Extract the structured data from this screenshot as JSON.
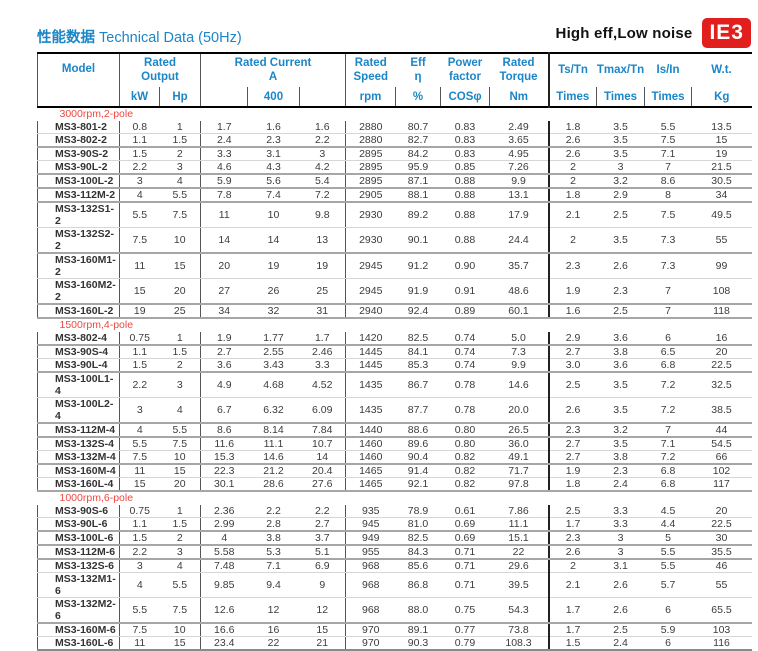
{
  "page": {
    "title_cn": "性能数据",
    "title_en": " Technical Data (50Hz)",
    "tagline": "High eff,Low noise",
    "badge_label": "IE3"
  },
  "colors": {
    "accent_blue": "#1b86c8",
    "section_red": "#ee4742",
    "badge_red": "#e11f1d"
  },
  "table": {
    "header": {
      "model": "Model",
      "rated_output": "Rated\nOutput",
      "rated_current": "Rated Current\nA",
      "rated_speed": "Rated\nSpeed",
      "eff": "Eff\nη",
      "power_factor": "Power\nfactor",
      "rated_torque": "Rated\nTorque",
      "ts_tn": "Ts/Tn",
      "tmax_tn": "Tmax/Tn",
      "is_in": "Is/In",
      "wt": "W.t.",
      "units": {
        "kw": "kW",
        "hp": "Hp",
        "i1": "",
        "i2": "400",
        "i3": "",
        "rpm": "rpm",
        "eff": "%",
        "cos": "COSφ",
        "nm": "Nm",
        "times": "Times",
        "kg": "Kg"
      }
    },
    "sections": [
      {
        "label": "3000rpm,2-pole",
        "rows": [
          {
            "model": "MS3-801-2",
            "values": [
              "0.8",
              "1",
              "1.7",
              "1.6",
              "1.6",
              "2880",
              "80.7",
              "0.83",
              "2.49",
              "1.8",
              "3.5",
              "5.5",
              "13.5"
            ],
            "heavy": false
          },
          {
            "model": "MS3-802-2",
            "values": [
              "1.1",
              "1.5",
              "2.4",
              "2.3",
              "2.2",
              "2880",
              "82.7",
              "0.83",
              "3.65",
              "2.6",
              "3.5",
              "7.5",
              "15"
            ],
            "heavy": true
          },
          {
            "model": "MS3-90S-2",
            "values": [
              "1.5",
              "2",
              "3.3",
              "3.1",
              "3",
              "2895",
              "84.2",
              "0.83",
              "4.95",
              "2.6",
              "3.5",
              "7.1",
              "19"
            ],
            "heavy": false
          },
          {
            "model": "MS3-90L-2",
            "values": [
              "2.2",
              "3",
              "4.6",
              "4.3",
              "4.2",
              "2895",
              "95.9",
              "0.85",
              "7.26",
              "2",
              "3",
              "7",
              "21.5"
            ],
            "heavy": true
          },
          {
            "model": "MS3-100L-2",
            "values": [
              "3",
              "4",
              "5.9",
              "5.6",
              "5.4",
              "2895",
              "87.1",
              "0.88",
              "9.9",
              "2",
              "3.2",
              "8.6",
              "30.5"
            ],
            "heavy": true
          },
          {
            "model": "MS3-112M-2",
            "values": [
              "4",
              "5.5",
              "7.8",
              "7.4",
              "7.2",
              "2905",
              "88.1",
              "0.88",
              "13.1",
              "1.8",
              "2.9",
              "8",
              "34"
            ],
            "heavy": true
          },
          {
            "model": "MS3-132S1-2",
            "values": [
              "5.5",
              "7.5",
              "11",
              "10",
              "9.8",
              "2930",
              "89.2",
              "0.88",
              "17.9",
              "2.1",
              "2.5",
              "7.5",
              "49.5"
            ],
            "heavy": false
          },
          {
            "model": "MS3-132S2-2",
            "values": [
              "7.5",
              "10",
              "14",
              "14",
              "13",
              "2930",
              "90.1",
              "0.88",
              "24.4",
              "2",
              "3.5",
              "7.3",
              "55"
            ],
            "heavy": true
          },
          {
            "model": "MS3-160M1-2",
            "values": [
              "11",
              "15",
              "20",
              "19",
              "19",
              "2945",
              "91.2",
              "0.90",
              "35.7",
              "2.3",
              "2.6",
              "7.3",
              "99"
            ],
            "heavy": false
          },
          {
            "model": "MS3-160M2-2",
            "values": [
              "15",
              "20",
              "27",
              "26",
              "25",
              "2945",
              "91.9",
              "0.91",
              "48.6",
              "1.9",
              "2.3",
              "7",
              "108"
            ],
            "heavy": true
          },
          {
            "model": "MS3-160L-2",
            "values": [
              "19",
              "25",
              "34",
              "32",
              "31",
              "2940",
              "92.4",
              "0.89",
              "60.1",
              "1.6",
              "2.5",
              "7",
              "118"
            ],
            "heavy": true
          }
        ]
      },
      {
        "label": "1500rpm,4-pole",
        "rows": [
          {
            "model": "MS3-802-4",
            "values": [
              "0.75",
              "1",
              "1.9",
              "1.77",
              "1.7",
              "1420",
              "82.5",
              "0.74",
              "5.0",
              "2.9",
              "3.6",
              "6",
              "16"
            ],
            "heavy": true
          },
          {
            "model": "MS3-90S-4",
            "values": [
              "1.1",
              "1.5",
              "2.7",
              "2.55",
              "2.46",
              "1445",
              "84.1",
              "0.74",
              "7.3",
              "2.7",
              "3.8",
              "6.5",
              "20"
            ],
            "heavy": false
          },
          {
            "model": "MS3-90L-4",
            "values": [
              "1.5",
              "2",
              "3.6",
              "3.43",
              "3.3",
              "1445",
              "85.3",
              "0.74",
              "9.9",
              "3.0",
              "3.6",
              "6.8",
              "22.5"
            ],
            "heavy": true
          },
          {
            "model": "MS3-100L1-4",
            "values": [
              "2.2",
              "3",
              "4.9",
              "4.68",
              "4.52",
              "1435",
              "86.7",
              "0.78",
              "14.6",
              "2.5",
              "3.5",
              "7.2",
              "32.5"
            ],
            "heavy": false
          },
          {
            "model": "MS3-100L2-4",
            "values": [
              "3",
              "4",
              "6.7",
              "6.32",
              "6.09",
              "1435",
              "87.7",
              "0.78",
              "20.0",
              "2.6",
              "3.5",
              "7.2",
              "38.5"
            ],
            "heavy": true
          },
          {
            "model": "MS3-112M-4",
            "values": [
              "4",
              "5.5",
              "8.6",
              "8.14",
              "7.84",
              "1440",
              "88.6",
              "0.80",
              "26.5",
              "2.3",
              "3.2",
              "7",
              "44"
            ],
            "heavy": true
          },
          {
            "model": "MS3-132S-4",
            "values": [
              "5.5",
              "7.5",
              "11.6",
              "11.1",
              "10.7",
              "1460",
              "89.6",
              "0.80",
              "36.0",
              "2.7",
              "3.5",
              "7.1",
              "54.5"
            ],
            "heavy": false
          },
          {
            "model": "MS3-132M-4",
            "values": [
              "7.5",
              "10",
              "15.3",
              "14.6",
              "14",
              "1460",
              "90.4",
              "0.82",
              "49.1",
              "2.7",
              "3.8",
              "7.2",
              "66"
            ],
            "heavy": true
          },
          {
            "model": "MS3-160M-4",
            "values": [
              "11",
              "15",
              "22.3",
              "21.2",
              "20.4",
              "1465",
              "91.4",
              "0.82",
              "71.7",
              "1.9",
              "2.3",
              "6.8",
              "102"
            ],
            "heavy": false
          },
          {
            "model": "MS3-160L-4",
            "values": [
              "15",
              "20",
              "30.1",
              "28.6",
              "27.6",
              "1465",
              "92.1",
              "0.82",
              "97.8",
              "1.8",
              "2.4",
              "6.8",
              "117"
            ],
            "heavy": true
          }
        ]
      },
      {
        "label": "1000rpm,6-pole",
        "rows": [
          {
            "model": "MS3-90S-6",
            "values": [
              "0.75",
              "1",
              "2.36",
              "2.2",
              "2.2",
              "935",
              "78.9",
              "0.61",
              "7.86",
              "2.5",
              "3.3",
              "4.5",
              "20"
            ],
            "heavy": false
          },
          {
            "model": "MS3-90L-6",
            "values": [
              "1.1",
              "1.5",
              "2.99",
              "2.8",
              "2.7",
              "945",
              "81.0",
              "0.69",
              "11.1",
              "1.7",
              "3.3",
              "4.4",
              "22.5"
            ],
            "heavy": true
          },
          {
            "model": "MS3-100L-6",
            "values": [
              "1.5",
              "2",
              "4",
              "3.8",
              "3.7",
              "949",
              "82.5",
              "0.69",
              "15.1",
              "2.3",
              "3",
              "5",
              "30"
            ],
            "heavy": true
          },
          {
            "model": "MS3-112M-6",
            "values": [
              "2.2",
              "3",
              "5.58",
              "5.3",
              "5.1",
              "955",
              "84.3",
              "0.71",
              "22",
              "2.6",
              "3",
              "5.5",
              "35.5"
            ],
            "heavy": true
          },
          {
            "model": "MS3-132S-6",
            "values": [
              "3",
              "4",
              "7.48",
              "7.1",
              "6.9",
              "968",
              "85.6",
              "0.71",
              "29.6",
              "2",
              "3.1",
              "5.5",
              "46"
            ],
            "heavy": false
          },
          {
            "model": "MS3-132M1-6",
            "values": [
              "4",
              "5.5",
              "9.85",
              "9.4",
              "9",
              "968",
              "86.8",
              "0.71",
              "39.5",
              "2.1",
              "2.6",
              "5.7",
              "55"
            ],
            "heavy": false
          },
          {
            "model": "MS3-132M2-6",
            "values": [
              "5.5",
              "7.5",
              "12.6",
              "12",
              "12",
              "968",
              "88.0",
              "0.75",
              "54.3",
              "1.7",
              "2.6",
              "6",
              "65.5"
            ],
            "heavy": true
          },
          {
            "model": "MS3-160M-6",
            "values": [
              "7.5",
              "10",
              "16.6",
              "16",
              "15",
              "970",
              "89.1",
              "0.77",
              "73.8",
              "1.7",
              "2.5",
              "5.9",
              "103"
            ],
            "heavy": false
          },
          {
            "model": "MS3-160L-6",
            "values": [
              "11",
              "15",
              "23.4",
              "22",
              "21",
              "970",
              "90.3",
              "0.79",
              "108.3",
              "1.5",
              "2.4",
              "6",
              "116"
            ],
            "heavy": true
          }
        ]
      }
    ]
  }
}
